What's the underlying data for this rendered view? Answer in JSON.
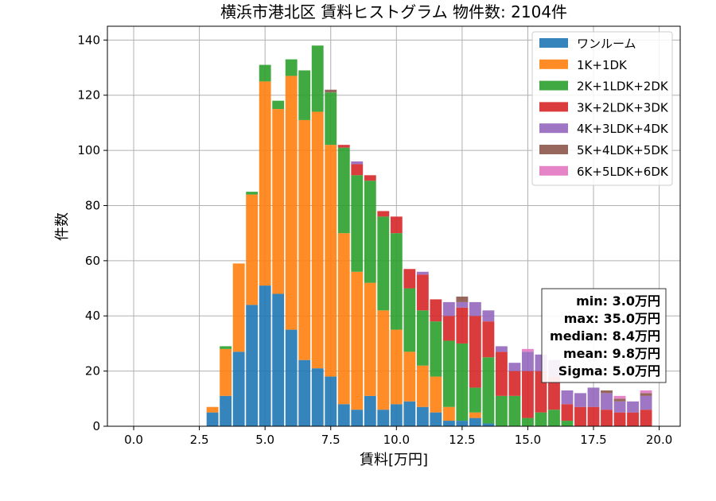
{
  "chart_data": {
    "type": "bar",
    "title": "横浜市港北区 賃料ヒストグラム 物件数: 2104件",
    "xlabel": "賃料[万円]",
    "ylabel": "件数",
    "xlim": [
      -1.0,
      20.8
    ],
    "ylim": [
      0,
      145
    ],
    "xticks": [
      0.0,
      2.5,
      5.0,
      7.5,
      10.0,
      12.5,
      15.0,
      17.5,
      20.0
    ],
    "xtick_labels": [
      "0.0",
      "2.5",
      "5.0",
      "7.5",
      "10.0",
      "12.5",
      "15.0",
      "17.5",
      "20.0"
    ],
    "yticks": [
      0,
      20,
      40,
      60,
      80,
      100,
      120,
      140
    ],
    "ytick_labels": [
      "0",
      "20",
      "40",
      "60",
      "80",
      "100",
      "120",
      "140"
    ],
    "grid": true,
    "legend_position": "top-right",
    "stacked": true,
    "bin_width": 0.5,
    "x": [
      3.0,
      3.5,
      4.0,
      4.5,
      5.0,
      5.5,
      6.0,
      6.5,
      7.0,
      7.5,
      8.0,
      8.5,
      9.0,
      9.5,
      10.0,
      10.5,
      11.0,
      11.5,
      12.0,
      12.5,
      13.0,
      13.5,
      14.0,
      14.5,
      15.0,
      15.5,
      16.0,
      16.5,
      17.0,
      17.5,
      18.0,
      18.5,
      19.0,
      19.5
    ],
    "series": [
      {
        "name": "ワンルーム",
        "color": "#1f77b4",
        "values": [
          5,
          11,
          27,
          44,
          51,
          48,
          35,
          24,
          21,
          18,
          8,
          6,
          11,
          6,
          8,
          9,
          7,
          5,
          2,
          2,
          3,
          1,
          0,
          0,
          0,
          0,
          0,
          0,
          0,
          0,
          0,
          0,
          0,
          0
        ]
      },
      {
        "name": "1K+1DK",
        "color": "#ff7f0e",
        "values": [
          2,
          17,
          32,
          40,
          74,
          67,
          92,
          87,
          93,
          84,
          62,
          50,
          41,
          36,
          27,
          18,
          15,
          13,
          5,
          0,
          2,
          0,
          0,
          0,
          0,
          0,
          0,
          0,
          0,
          0,
          0,
          0,
          0,
          0
        ]
      },
      {
        "name": "2K+1LDK+2DK",
        "color": "#2ca02c",
        "values": [
          0,
          1,
          0,
          1,
          6,
          3,
          6,
          18,
          24,
          19,
          31,
          35,
          37,
          34,
          35,
          23,
          20,
          20,
          24,
          28,
          9,
          24,
          11,
          11,
          3,
          5,
          6,
          2,
          0,
          0,
          0,
          0,
          0,
          0
        ]
      },
      {
        "name": "3K+2LDK+3DK",
        "color": "#d62728",
        "values": [
          0,
          0,
          0,
          0,
          0,
          0,
          0,
          0,
          0,
          0,
          1,
          4,
          2,
          2,
          6,
          7,
          13,
          8,
          9,
          13,
          26,
          13,
          16,
          9,
          17,
          15,
          12,
          6,
          7,
          7,
          6,
          5,
          5,
          6
        ]
      },
      {
        "name": "4K+3LDK+4DK",
        "color": "#9467bd",
        "values": [
          0,
          0,
          0,
          0,
          0,
          0,
          0,
          0,
          0,
          0,
          0,
          1,
          0,
          0,
          0,
          0,
          1,
          0,
          5,
          2,
          5,
          4,
          2,
          3,
          7,
          6,
          6,
          5,
          5,
          7,
          6,
          4,
          4,
          5
        ]
      },
      {
        "name": "5K+4LDK+5DK",
        "color": "#8c564b",
        "values": [
          0,
          0,
          0,
          0,
          0,
          0,
          0,
          0,
          0,
          1,
          0,
          0,
          0,
          0,
          0,
          0,
          0,
          0,
          0,
          2,
          0,
          0,
          0,
          0,
          0,
          0,
          0,
          0,
          0,
          0,
          1,
          1,
          0,
          1
        ]
      },
      {
        "name": "6K+5LDK+6DK",
        "color": "#e377c2",
        "values": [
          0,
          0,
          0,
          0,
          0,
          0,
          0,
          0,
          0,
          0,
          0,
          0,
          0,
          0,
          0,
          0,
          0,
          0,
          0,
          0,
          0,
          0,
          0,
          0,
          1,
          0,
          0,
          0,
          0,
          0,
          0,
          1,
          0,
          1
        ]
      }
    ],
    "stats_box": {
      "position": "right",
      "lines": [
        "min: 3.0万円",
        "max: 35.0万円",
        "median: 8.4万円",
        "mean: 9.8万円",
        "Sigma: 5.0万円"
      ]
    }
  }
}
